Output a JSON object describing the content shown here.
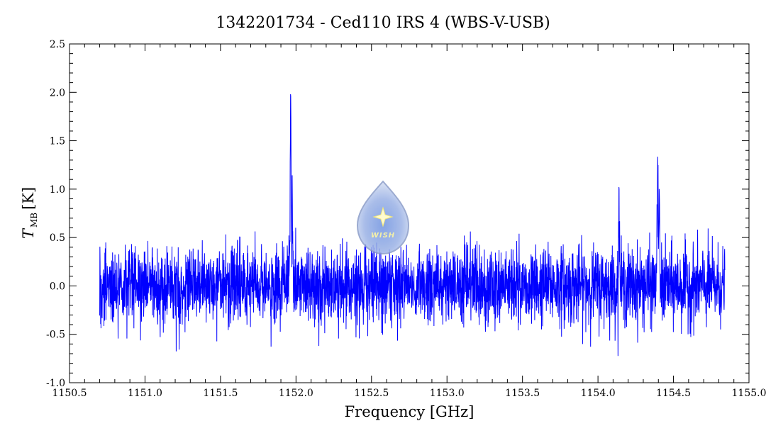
{
  "chart_data": {
    "type": "line",
    "title": "1342201734 - Ced110 IRS 4 (WBS-V-USB)",
    "xlabel": "Frequency [GHz]",
    "ylabel_main": "T",
    "ylabel_sub": "MB",
    "ylabel_unit": "[K]",
    "xlim": [
      1150.5,
      1155.0
    ],
    "ylim": [
      -1.0,
      2.5
    ],
    "x_ticks": [
      "1150.5",
      "1151.0",
      "1151.5",
      "1152.0",
      "1152.5",
      "1153.0",
      "1153.5",
      "1154.0",
      "1154.5",
      "1155.0"
    ],
    "y_ticks": [
      "-1.0",
      "-0.5",
      "0.0",
      "0.5",
      "1.0",
      "1.5",
      "2.0",
      "2.5"
    ],
    "grid": false,
    "series": [
      {
        "color": "#0000ff",
        "x_range": [
          1150.7,
          1154.84
        ],
        "noise_rms": 0.2,
        "baseline": 0.0,
        "features": [
          {
            "x": 1151.965,
            "peak": 1.98
          },
          {
            "x": 1151.975,
            "peak": 1.08
          },
          {
            "x": 1154.395,
            "peak": 1.42
          },
          {
            "x": 1154.405,
            "peak": 0.86
          },
          {
            "x": 1154.14,
            "peak": 0.9
          }
        ]
      }
    ]
  },
  "logo": {
    "text": "WISH",
    "icon": "water-drop-star-icon"
  }
}
